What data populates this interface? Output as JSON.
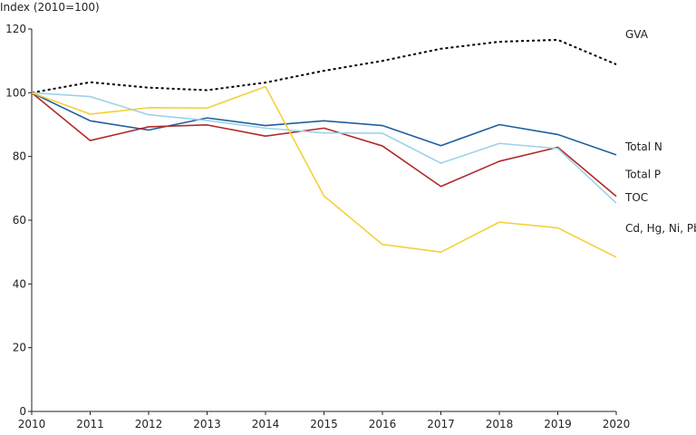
{
  "chart_data": {
    "type": "line",
    "title": "",
    "ylabel": "Index (2010=100)",
    "xlabel": "",
    "x": [
      2010,
      2011,
      2012,
      2013,
      2014,
      2015,
      2016,
      2017,
      2018,
      2019,
      2020
    ],
    "ylim": [
      0,
      120
    ],
    "yticks": [
      0,
      20,
      40,
      60,
      80,
      100,
      120
    ],
    "grid": false,
    "legend": "direct labels at line ends",
    "series": [
      {
        "name": "GVA",
        "color": "#000000",
        "dash": "dotted",
        "values": [
          100,
          103.3,
          101.6,
          100.8,
          103.2,
          106.9,
          110.0,
          113.8,
          116.0,
          116.6,
          108.9
        ]
      },
      {
        "name": "Total N",
        "color": "#1f5fa0",
        "dash": "solid",
        "values": [
          100,
          91.2,
          88.3,
          92.1,
          89.7,
          91.2,
          89.7,
          83.4,
          90.0,
          86.9,
          80.5
        ]
      },
      {
        "name": "Total P",
        "color": "#b22a2a",
        "dash": "solid",
        "values": [
          100,
          85.0,
          89.3,
          89.9,
          86.4,
          88.9,
          83.3,
          70.6,
          78.5,
          82.9,
          67.5
        ]
      },
      {
        "name": "TOC",
        "color": "#9dd2ea",
        "dash": "solid",
        "values": [
          100,
          98.8,
          93.1,
          91.3,
          88.9,
          87.4,
          87.3,
          77.9,
          84.1,
          82.5,
          65.4
        ]
      },
      {
        "name": "Cd, Hg, Ni, Pb",
        "color": "#f4d03a",
        "dash": "solid",
        "values": [
          100,
          93.3,
          95.3,
          95.2,
          101.9,
          67.6,
          52.4,
          50.0,
          59.4,
          57.6,
          48.4
        ]
      }
    ]
  }
}
